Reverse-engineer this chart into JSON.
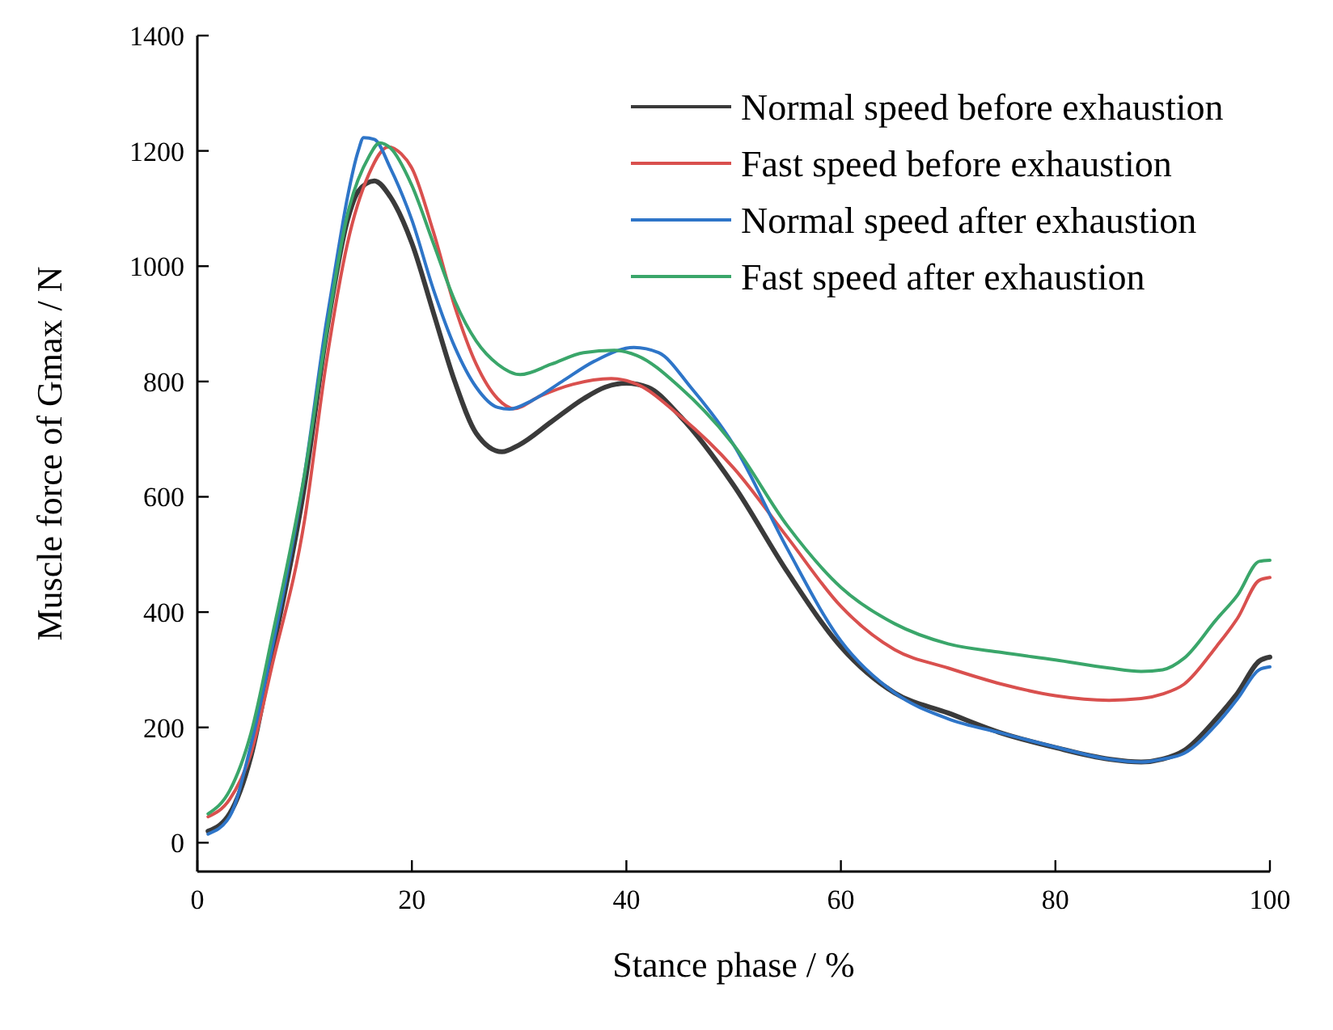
{
  "chart_data": {
    "type": "line",
    "xlabel": "Stance phase / %",
    "ylabel": "Muscle force of Gmax / N",
    "xlim": [
      0,
      100
    ],
    "xticks": [
      0,
      20,
      40,
      60,
      80,
      100
    ],
    "ylim": [
      -50,
      1400
    ],
    "yticks": [
      0,
      200,
      400,
      600,
      800,
      1000,
      1200,
      1400
    ],
    "grid": false,
    "legend": "top right",
    "marker": "none",
    "line_style": "solid",
    "series": [
      {
        "name": "Normal speed before exhaustion",
        "color": "#3a3a3a",
        "x": [
          1,
          3,
          5,
          7,
          10,
          12,
          14,
          15,
          16.5,
          18,
          20,
          22,
          24,
          26,
          28.4,
          30,
          33,
          36,
          38,
          40,
          42,
          45,
          50,
          55,
          60,
          65,
          70,
          75,
          80,
          85,
          88,
          90,
          92,
          95,
          97,
          99,
          100
        ],
        "values": [
          20,
          50,
          150,
          330,
          620,
          880,
          1080,
          1130,
          1148,
          1120,
          1040,
          920,
          800,
          710,
          678,
          690,
          730,
          770,
          790,
          797,
          790,
          740,
          620,
          470,
          340,
          260,
          225,
          190,
          165,
          145,
          140,
          145,
          160,
          215,
          260,
          315,
          322
        ]
      },
      {
        "name": "Fast speed before exhaustion",
        "color": "#d9504e",
        "x": [
          1,
          3,
          5,
          7,
          10,
          12,
          14,
          16,
          17.8,
          19,
          20,
          22,
          24,
          26,
          28,
          29.5,
          32,
          35,
          38.6,
          41,
          45,
          50,
          55,
          60,
          65,
          70,
          75,
          80,
          85,
          88,
          90,
          92,
          95,
          97,
          99,
          100
        ],
        "values": [
          45,
          75,
          155,
          310,
          560,
          830,
          1040,
          1160,
          1207,
          1195,
          1170,
          1060,
          930,
          830,
          770,
          753,
          775,
          795,
          805,
          795,
          740,
          650,
          530,
          410,
          335,
          303,
          275,
          255,
          247,
          250,
          258,
          275,
          340,
          390,
          455,
          460
        ]
      },
      {
        "name": "Normal speed after exhaustion",
        "color": "#2e75c8",
        "x": [
          1,
          3,
          5,
          7,
          10,
          12,
          13,
          14,
          15,
          15.5,
          16.5,
          18,
          20,
          22,
          24,
          26,
          28,
          29.1,
          31,
          34,
          37,
          40.7,
          43,
          46,
          50,
          55,
          60,
          65,
          70,
          75,
          80,
          85,
          88,
          90,
          92,
          95,
          97,
          99,
          100
        ],
        "values": [
          15,
          45,
          170,
          340,
          640,
          900,
          1013,
          1120,
          1200,
          1223,
          1220,
          1170,
          1080,
          960,
          860,
          790,
          755,
          752,
          765,
          800,
          835,
          859,
          850,
          790,
          690,
          510,
          350,
          260,
          215,
          190,
          166,
          145,
          140,
          145,
          155,
          205,
          250,
          300,
          305
        ]
      },
      {
        "name": "Fast speed after exhaustion",
        "color": "#3aa66a",
        "x": [
          1,
          3,
          5,
          7,
          10,
          12,
          14,
          16,
          17,
          18,
          20,
          22,
          24,
          26,
          28,
          30.1,
          33,
          36,
          38.9,
          41,
          45,
          50,
          55,
          60,
          65,
          70,
          75,
          80,
          85,
          88,
          90,
          92,
          95,
          97,
          99,
          100
        ],
        "values": [
          50,
          90,
          190,
          360,
          640,
          880,
          1090,
          1190,
          1214,
          1205,
          1140,
          1040,
          940,
          870,
          830,
          812,
          830,
          850,
          854,
          845,
          790,
          690,
          550,
          443,
          380,
          345,
          330,
          317,
          303,
          297,
          300,
          320,
          387,
          430,
          488,
          490
        ]
      }
    ]
  }
}
